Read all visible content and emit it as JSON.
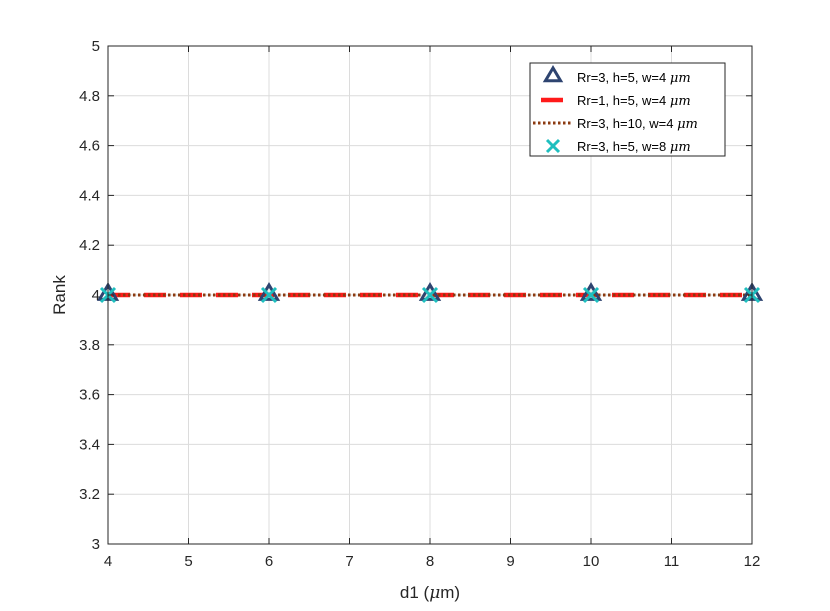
{
  "chart_data": {
    "type": "line",
    "title": "",
    "xlabel": "d1 (",
    "xlabel_unit": "μ",
    "xlabel_suffix": "m)",
    "ylabel": "Rank",
    "xlim": [
      4,
      12
    ],
    "ylim": [
      3,
      5
    ],
    "xticks": [
      4,
      5,
      6,
      7,
      8,
      9,
      10,
      11,
      12
    ],
    "yticks": [
      3,
      3.2,
      3.4,
      3.6,
      3.8,
      4,
      4.2,
      4.4,
      4.6,
      4.8,
      5
    ],
    "ytick_labels": [
      "3",
      "3.2",
      "3.4",
      "3.6",
      "3.8",
      "4",
      "4.2",
      "4.4",
      "4.6",
      "4.8",
      "5"
    ],
    "grid": true,
    "legend_position": "top-right",
    "x": [
      4,
      6,
      8,
      10,
      12
    ],
    "series": [
      {
        "name": "Rr=3, h=5, w=4 ",
        "name_unit": "μm",
        "values": [
          4,
          4,
          4,
          4,
          4
        ],
        "color": "#2e4470",
        "style": "triangle-markers"
      },
      {
        "name": "Rr=1, h=5, w=4 ",
        "name_unit": "μm",
        "values": [
          4,
          4,
          4,
          4,
          4
        ],
        "color": "#ff1a1a",
        "style": "dashed"
      },
      {
        "name": "Rr=3, h=10, w=4 ",
        "name_unit": "μm",
        "values": [
          4,
          4,
          4,
          4,
          4
        ],
        "color": "#8b3a10",
        "style": "dotted"
      },
      {
        "name": "Rr=3, h=5, w=8 ",
        "name_unit": "μm",
        "values": [
          4,
          4,
          4,
          4,
          4
        ],
        "color": "#1fbfbf",
        "style": "x-markers"
      }
    ]
  }
}
